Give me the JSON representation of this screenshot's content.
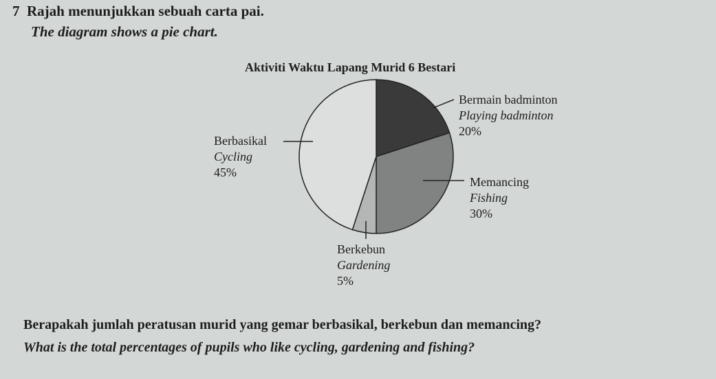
{
  "question": {
    "number": "7",
    "intro_ms": "Rajah menunjukkan sebuah carta pai.",
    "intro_en": "The diagram shows a pie chart.",
    "ask_ms": "Berapakah jumlah peratusan murid yang gemar berbasikal, berkebun dan memancing?",
    "ask_en": "What is the total percentages of pupils who like cycling, gardening and fishing?"
  },
  "chart_data": {
    "type": "pie",
    "title": "Aktiviti Waktu Lapang Murid 6 Bestari",
    "slices": [
      {
        "label_ms": "Bermain badminton",
        "label_en": "Playing badminton",
        "value": 20,
        "value_label": "20%",
        "color": "#3a3a3a"
      },
      {
        "label_ms": "Memancing",
        "label_en": "Fishing",
        "value": 30,
        "value_label": "30%",
        "color": "#808382"
      },
      {
        "label_ms": "Berkebun",
        "label_en": "Gardening",
        "value": 5,
        "value_label": "5%",
        "color": "#b3b6b5"
      },
      {
        "label_ms": "Berbasikal",
        "label_en": "Cycling",
        "value": 45,
        "value_label": "45%",
        "color": "#dcdfde"
      }
    ],
    "start": "top",
    "direction": "clockwise"
  }
}
